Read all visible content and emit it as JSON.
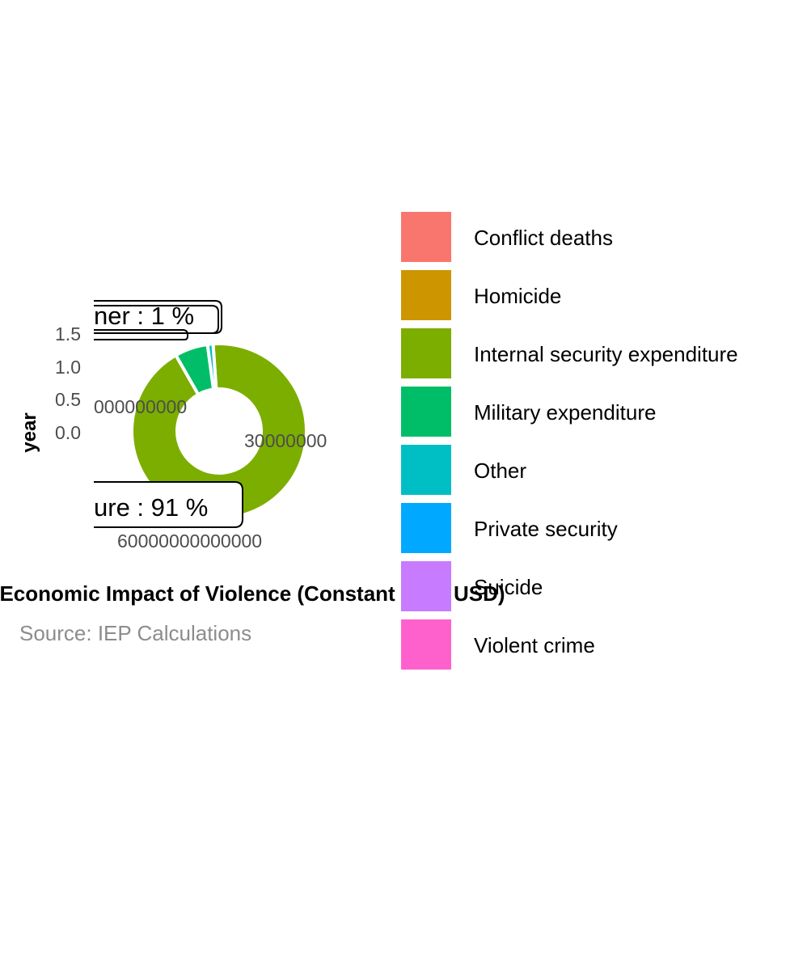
{
  "chart_data": {
    "type": "pie",
    "variant": "donut",
    "title": "Economic Impact of Violence (Constant 2020 USD)",
    "caption": "Source: IEP Calculations",
    "ylabel": "year",
    "y_ticks": [
      "0.0",
      "0.5",
      "1.0",
      "1.5"
    ],
    "x_tick_labels": [
      "30000000",
      "60000000000000",
      "000000000"
    ],
    "categories": [
      "Conflict deaths",
      "Homicide",
      "Internal security expenditure",
      "Military expenditure",
      "Other",
      "Private security",
      "Suicide",
      "Violent crime"
    ],
    "values": [
      0,
      0,
      91,
      6,
      1,
      0,
      0,
      0
    ],
    "colors": [
      "#F8766D",
      "#CD9600",
      "#7CAE00",
      "#00BE67",
      "#00BFC4",
      "#00A9FF",
      "#C77CFF",
      "#FF61CC"
    ],
    "callouts": [
      {
        "text": "ner :  1 %"
      },
      {
        "text": "ure :  91 %"
      }
    ],
    "legend_position": "right"
  }
}
